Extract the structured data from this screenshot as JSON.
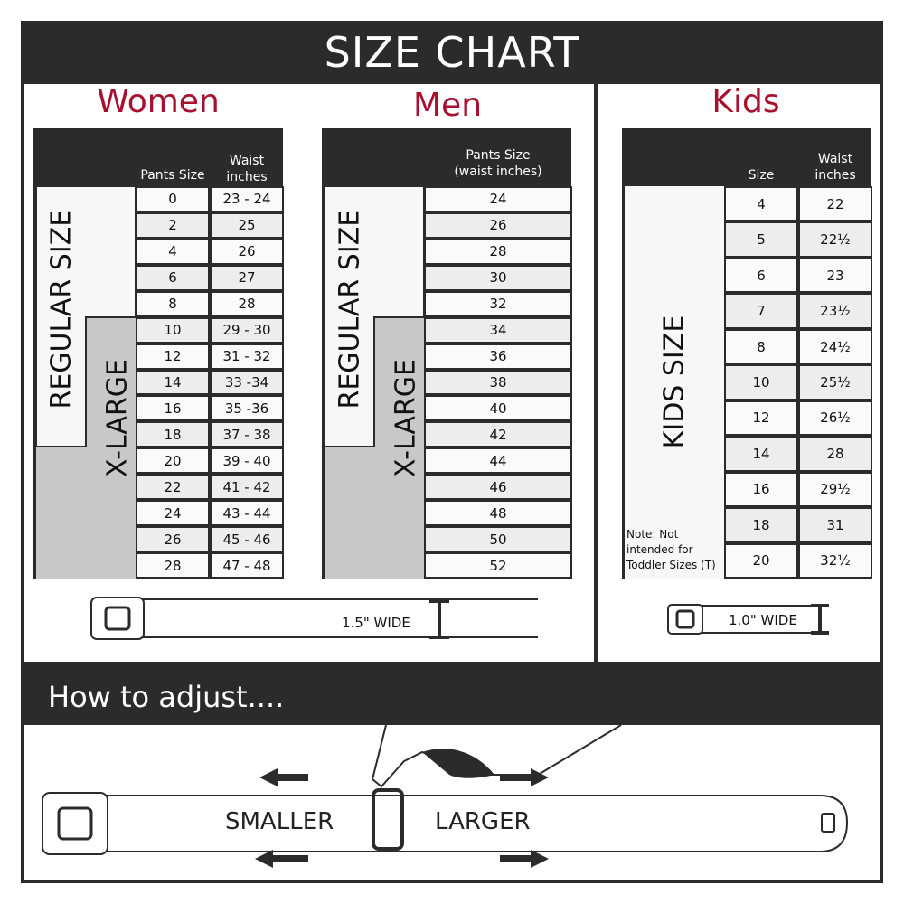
{
  "title": "SIZE CHART",
  "colors": {
    "accent": "#a8102f",
    "dark": "#2b2b2b",
    "xlarge": "#c8c8c8"
  },
  "women": {
    "heading": "Women",
    "col_size": "Pants Size",
    "col_waist": "Waist inches",
    "regular_label": "REGULAR SIZE",
    "xlarge_label": "X-LARGE",
    "rows": [
      [
        "0",
        "23 - 24"
      ],
      [
        "2",
        "25"
      ],
      [
        "4",
        "26"
      ],
      [
        "6",
        "27"
      ],
      [
        "8",
        "28"
      ],
      [
        "10",
        "29 - 30"
      ],
      [
        "12",
        "31 - 32"
      ],
      [
        "14",
        "33 -34"
      ],
      [
        "16",
        "35 -36"
      ],
      [
        "18",
        "37 - 38"
      ],
      [
        "20",
        "39 - 40"
      ],
      [
        "22",
        "41 - 42"
      ],
      [
        "24",
        "43 - 44"
      ],
      [
        "26",
        "45 - 46"
      ],
      [
        "28",
        "47 - 48"
      ]
    ],
    "belt_width": "1.5\" WIDE"
  },
  "men": {
    "heading": "Men",
    "col_size": "Pants Size (waist inches)",
    "regular_label": "REGULAR SIZE",
    "xlarge_label": "X-LARGE",
    "rows": [
      "24",
      "26",
      "28",
      "30",
      "32",
      "34",
      "36",
      "38",
      "40",
      "42",
      "44",
      "46",
      "48",
      "50",
      "52"
    ]
  },
  "kids": {
    "heading": "Kids",
    "col_size": "Size",
    "col_waist": "Waist inches",
    "label": "KIDS SIZE",
    "note": "Note: Not intended for Toddler Sizes (T)",
    "rows": [
      [
        "4",
        "22"
      ],
      [
        "5",
        "22½"
      ],
      [
        "6",
        "23"
      ],
      [
        "7",
        "23½"
      ],
      [
        "8",
        "24½"
      ],
      [
        "10",
        "25½"
      ],
      [
        "12",
        "26½"
      ],
      [
        "14",
        "28"
      ],
      [
        "16",
        "29½"
      ],
      [
        "18",
        "31"
      ],
      [
        "20",
        "32½"
      ]
    ],
    "belt_width": "1.0\" WIDE"
  },
  "adjust": {
    "heading": "How to adjust....",
    "smaller": "SMALLER",
    "larger": "LARGER"
  }
}
